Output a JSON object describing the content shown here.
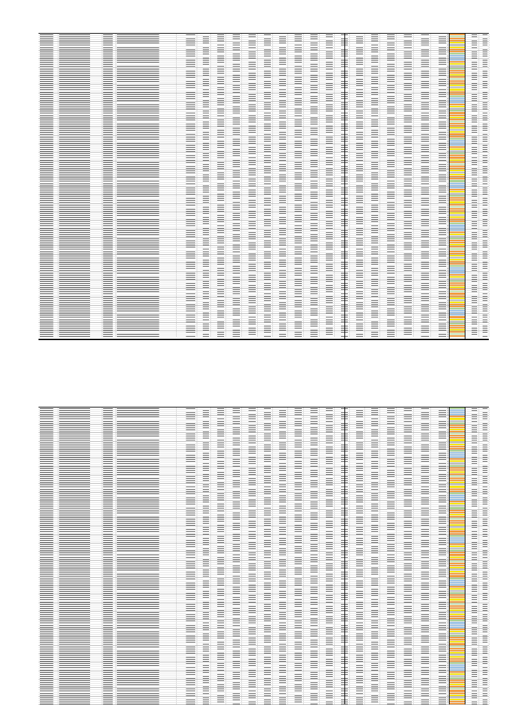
{
  "colors": {
    "orange": "#f39a3c",
    "yellow": "#f7e600",
    "green": "#a9d18e",
    "blue": "#9dc3e6",
    "grey": "#bfbfbf",
    "lightgreen": "#c9e6b3"
  },
  "sheets": [
    {
      "id": "sheet-top",
      "rows": 143
    },
    {
      "id": "sheet-bottom",
      "rows": 140
    }
  ],
  "columns": [
    {
      "name": "code",
      "kind": "text"
    },
    {
      "name": "name",
      "kind": "text"
    },
    {
      "name": "type",
      "kind": "text"
    },
    {
      "name": "region",
      "kind": "text"
    },
    {
      "name": "c05",
      "kind": "num"
    },
    {
      "name": "c06",
      "kind": "num"
    },
    {
      "name": "c07",
      "kind": "num"
    },
    {
      "name": "c08",
      "kind": "num"
    },
    {
      "name": "c09",
      "kind": "num"
    },
    {
      "name": "c10",
      "kind": "num"
    },
    {
      "name": "c11",
      "kind": "num"
    },
    {
      "name": "c12",
      "kind": "num"
    },
    {
      "name": "c13",
      "kind": "num"
    },
    {
      "name": "c14",
      "kind": "num"
    },
    {
      "name": "c15",
      "kind": "num"
    },
    {
      "name": "c16",
      "kind": "num"
    },
    {
      "name": "c17",
      "kind": "num"
    },
    {
      "name": "c18",
      "kind": "num"
    },
    {
      "name": "c19",
      "kind": "num"
    },
    {
      "name": "c20",
      "kind": "num"
    },
    {
      "name": "c21",
      "kind": "num"
    },
    {
      "name": "c22",
      "kind": "num"
    },
    {
      "name": "score",
      "kind": "score"
    },
    {
      "name": "c24",
      "kind": "num"
    },
    {
      "name": "c25",
      "kind": "num"
    }
  ],
  "highlight_cycle": [
    "orange",
    "orange",
    "yellow",
    "green",
    "blue",
    "grey",
    "orange",
    "lightgreen",
    "yellow",
    "orange",
    "blue",
    "orange",
    "green",
    "yellow",
    "orange",
    "grey",
    "orange",
    "blue",
    "yellow",
    "orange"
  ]
}
